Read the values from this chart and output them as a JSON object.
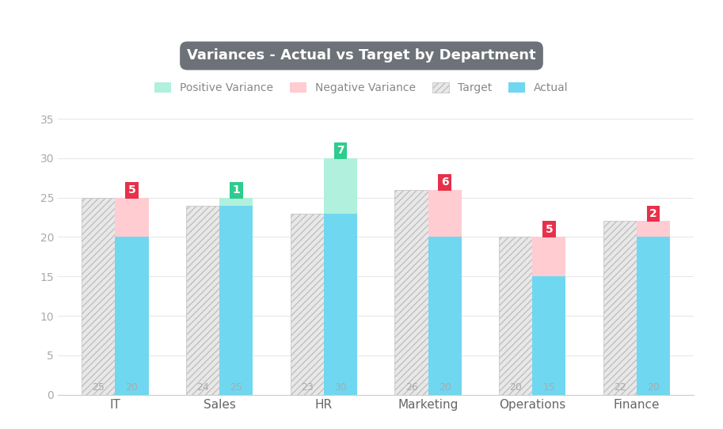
{
  "departments": [
    "IT",
    "Sales",
    "HR",
    "Marketing",
    "Operations",
    "Finance"
  ],
  "targets": [
    25,
    24,
    23,
    26,
    20,
    22
  ],
  "actuals": [
    20,
    25,
    30,
    20,
    15,
    20
  ],
  "variances": [
    5,
    1,
    7,
    6,
    5,
    2
  ],
  "variance_positive": [
    false,
    true,
    true,
    false,
    false,
    false
  ],
  "title": "Variances - Actual vs Target by Department",
  "title_bg": "#6d7278",
  "title_color": "#ffffff",
  "bar_width": 0.32,
  "actual_color": "#70d7f0",
  "target_hatch_facecolor": "#e8e8e8",
  "target_hatch_edgecolor": "#c0c0c0",
  "positive_variance_fill": "#b0f0dc",
  "negative_variance_fill": "#ffccd2",
  "bg_color": "#ffffff",
  "grid_color": "#e8e8e8",
  "ylim": [
    0,
    37
  ],
  "yticks": [
    0,
    5,
    10,
    15,
    20,
    25,
    30,
    35
  ],
  "badge_positive_bg": "#2ecc8e",
  "badge_negative_bg": "#e8304a",
  "badge_text_color": "#ffffff",
  "value_label_color": "#aaaaaa",
  "legend_items": [
    "Positive Variance",
    "Negative Variance",
    "Target",
    "Actual"
  ]
}
